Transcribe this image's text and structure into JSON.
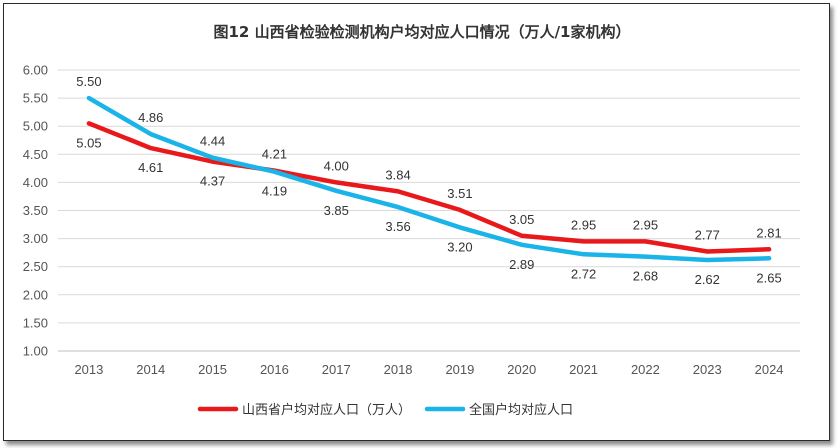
{
  "chart_data": {
    "type": "line",
    "title": "图12  山西省检验检测机构户均对应人口情况（万人/1家机构）",
    "xlabel": "",
    "ylabel": "",
    "ylim": [
      1.0,
      6.0
    ],
    "yticks": [
      "1.00",
      "1.50",
      "2.00",
      "2.50",
      "3.00",
      "3.50",
      "4.00",
      "4.50",
      "5.00",
      "5.50",
      "6.00"
    ],
    "categories": [
      "2013",
      "2014",
      "2015",
      "2016",
      "2017",
      "2018",
      "2019",
      "2020",
      "2021",
      "2022",
      "2023",
      "2024"
    ],
    "grid": true,
    "legend_position": "bottom",
    "series": [
      {
        "name": "山西省户均对应人口（万人）",
        "color": "#e8181b",
        "values": [
          5.05,
          4.61,
          4.37,
          4.21,
          4.0,
          3.84,
          3.51,
          3.05,
          2.95,
          2.95,
          2.77,
          2.81
        ],
        "labels": [
          "5.05",
          "4.61",
          "4.37",
          "4.21",
          "4.00",
          "3.84",
          "3.51",
          "3.05",
          "2.95",
          "2.95",
          "2.77",
          "2.81"
        ]
      },
      {
        "name": "全国户均对应人口",
        "color": "#1ab4e8",
        "values": [
          5.5,
          4.86,
          4.44,
          4.19,
          3.85,
          3.56,
          3.2,
          2.89,
          2.72,
          2.68,
          2.62,
          2.65
        ],
        "labels": [
          "5.50",
          "4.86",
          "4.44",
          "4.19",
          "3.85",
          "3.56",
          "3.20",
          "2.89",
          "2.72",
          "2.68",
          "2.62",
          "2.65"
        ]
      }
    ]
  }
}
